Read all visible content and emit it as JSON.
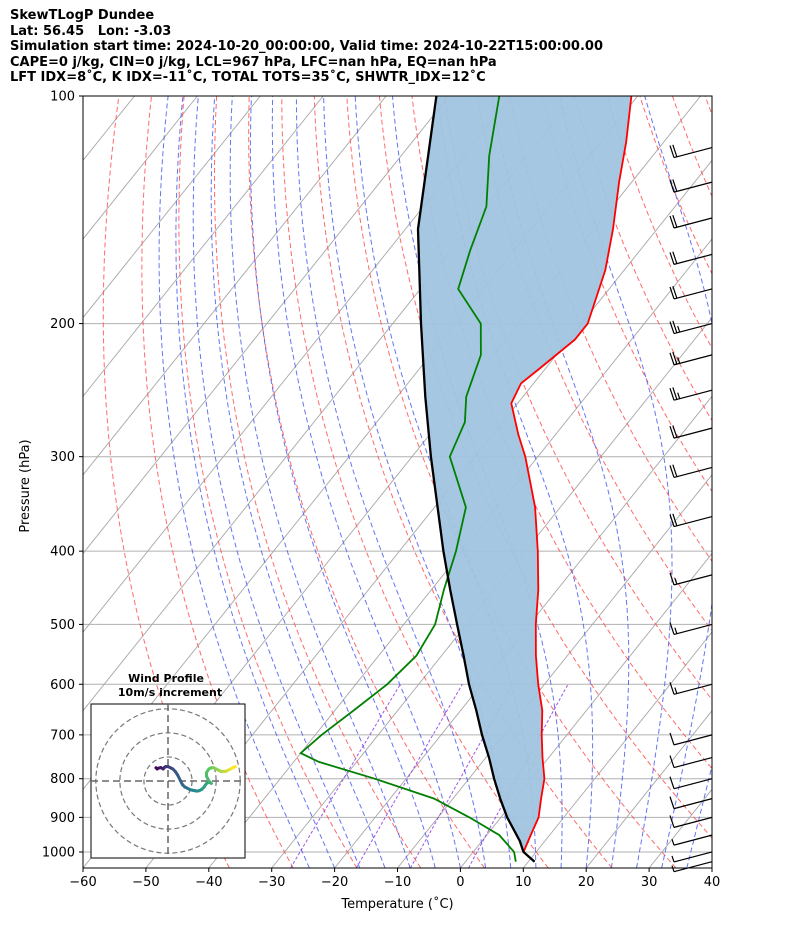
{
  "header": {
    "line1": "SkewTLogP Dundee",
    "line2": "Lat: 56.45   Lon: -3.03",
    "line3": "Simulation start time: 2024-10-20_00:00:00, Valid time: 2024-10-22T15:00:00.00",
    "line4": "CAPE=0 j/kg, CIN=0 j/kg, LCL=967 hPa, LFC=nan hPa, EQ=nan hPa",
    "line5": "LFT IDX=8˚C, K IDX=-11˚C, TOTAL TOTS=35˚C, SHWTR_IDX=12˚C"
  },
  "chart_data": {
    "type": "line",
    "subtype": "skew-t log-p",
    "xlabel": "Temperature (˚C)",
    "ylabel": "Pressure (hPa)",
    "xlim": [
      -60,
      40
    ],
    "ylim": [
      1050,
      100
    ],
    "x_ticks": [
      -60,
      -50,
      -40,
      -30,
      -20,
      -10,
      0,
      10,
      20,
      30,
      40
    ],
    "x_tick_labels": [
      "−60",
      "−50",
      "−40",
      "−30",
      "−20",
      "−10",
      "0",
      "10",
      "20",
      "30",
      "40"
    ],
    "y_ticks": [
      1000,
      900,
      800,
      700,
      600,
      500,
      400,
      300,
      200,
      100
    ],
    "y_tick_labels": [
      "1000",
      "900",
      "800",
      "700",
      "600",
      "500",
      "400",
      "300",
      "200",
      "100"
    ],
    "series": [
      {
        "name": "Temperature",
        "color": "#ff0000",
        "points": [
          [
            1030,
            11
          ],
          [
            1000,
            8
          ],
          [
            950,
            7
          ],
          [
            900,
            6
          ],
          [
            850,
            4
          ],
          [
            800,
            2
          ],
          [
            750,
            -1
          ],
          [
            700,
            -4
          ],
          [
            650,
            -7
          ],
          [
            600,
            -11
          ],
          [
            550,
            -15
          ],
          [
            500,
            -19
          ],
          [
            450,
            -23
          ],
          [
            400,
            -28
          ],
          [
            350,
            -34
          ],
          [
            300,
            -42
          ],
          [
            280,
            -46
          ],
          [
            255,
            -51
          ],
          [
            240,
            -52
          ],
          [
            230,
            -51
          ],
          [
            210,
            -49
          ],
          [
            200,
            -49
          ],
          [
            170,
            -53
          ],
          [
            150,
            -57
          ],
          [
            130,
            -62
          ],
          [
            115,
            -66
          ],
          [
            100,
            -71
          ]
        ]
      },
      {
        "name": "Dewpoint",
        "color": "#008000",
        "points": [
          [
            1030,
            8
          ],
          [
            1000,
            6.5
          ],
          [
            950,
            2
          ],
          [
            900,
            -5
          ],
          [
            850,
            -13
          ],
          [
            800,
            -25
          ],
          [
            760,
            -36
          ],
          [
            740,
            -40
          ],
          [
            700,
            -39
          ],
          [
            650,
            -37
          ],
          [
            600,
            -35
          ],
          [
            550,
            -34
          ],
          [
            500,
            -35
          ],
          [
            450,
            -38
          ],
          [
            400,
            -41
          ],
          [
            350,
            -45
          ],
          [
            300,
            -54
          ],
          [
            270,
            -56
          ],
          [
            250,
            -59
          ],
          [
            220,
            -62
          ],
          [
            200,
            -66
          ],
          [
            180,
            -74
          ],
          [
            160,
            -77
          ],
          [
            140,
            -80
          ],
          [
            120,
            -86
          ],
          [
            100,
            -92
          ]
        ]
      },
      {
        "name": "Parcel",
        "color": "#000000",
        "points": [
          [
            1030,
            11
          ],
          [
            1000,
            8
          ],
          [
            967,
            6
          ],
          [
            900,
            1
          ],
          [
            850,
            -2.5
          ],
          [
            800,
            -6
          ],
          [
            750,
            -9.5
          ],
          [
            700,
            -13.5
          ],
          [
            650,
            -17.5
          ],
          [
            600,
            -22
          ],
          [
            550,
            -26.5
          ],
          [
            500,
            -31.5
          ],
          [
            450,
            -37
          ],
          [
            400,
            -43
          ],
          [
            350,
            -49.5
          ],
          [
            300,
            -57
          ],
          [
            250,
            -65.5
          ],
          [
            200,
            -75.5
          ],
          [
            150,
            -88
          ],
          [
            100,
            -102
          ]
        ]
      }
    ],
    "fill": {
      "name": "CIN area",
      "color": "#a0c4df"
    },
    "background_lines": {
      "isotherms": "grey solid",
      "dry_adiabats": "red dashed",
      "moist_adiabats": "blue dashed",
      "mixing_ratio": "purple dashed"
    },
    "wind_barbs": [
      {
        "pressure": 1030,
        "u": -2,
        "v": 0
      },
      {
        "pressure": 1000,
        "u": -4,
        "v": 0
      },
      {
        "pressure": 950,
        "u": -6,
        "v": 0
      },
      {
        "pressure": 900,
        "u": -8,
        "v": 0
      },
      {
        "pressure": 850,
        "u": -9,
        "v": 0
      },
      {
        "pressure": 800,
        "u": -10,
        "v": 0
      },
      {
        "pressure": 750,
        "u": -11,
        "v": 0
      },
      {
        "pressure": 700,
        "u": -12,
        "v": 0
      },
      {
        "pressure": 600,
        "u": -14,
        "v": 0
      },
      {
        "pressure": 500,
        "u": -16,
        "v": 0
      },
      {
        "pressure": 430,
        "u": -17,
        "v": 0
      },
      {
        "pressure": 360,
        "u": -19,
        "v": 0
      },
      {
        "pressure": 310,
        "u": -21,
        "v": 0
      },
      {
        "pressure": 275,
        "u": -22,
        "v": 0
      },
      {
        "pressure": 245,
        "u": -24,
        "v": 0
      },
      {
        "pressure": 220,
        "u": -26,
        "v": 0
      },
      {
        "pressure": 200,
        "u": -23,
        "v": 0
      },
      {
        "pressure": 180,
        "u": -22,
        "v": 0
      },
      {
        "pressure": 162,
        "u": -22,
        "v": 0
      },
      {
        "pressure": 145,
        "u": -21,
        "v": 0
      },
      {
        "pressure": 130,
        "u": -21,
        "v": 0
      },
      {
        "pressure": 117,
        "u": -21,
        "v": 0
      }
    ],
    "inset": {
      "title_line1": "Wind Profile",
      "title_line2": "10m/s increment",
      "type": "hodograph",
      "rings": [
        10,
        20,
        30
      ],
      "range": 32,
      "hodograph_points": [
        [
          -5,
          5.5
        ],
        [
          -4.5,
          5
        ],
        [
          -4,
          5.3
        ],
        [
          -3,
          5.6
        ],
        [
          -2,
          5
        ],
        [
          -1.5,
          5.6
        ],
        [
          -1,
          6
        ],
        [
          0,
          6
        ],
        [
          1,
          5.5
        ],
        [
          2,
          5
        ],
        [
          3,
          4
        ],
        [
          4,
          2.5
        ],
        [
          5,
          0.5
        ],
        [
          6,
          -1.5
        ],
        [
          7,
          -2.5
        ],
        [
          8,
          -3
        ],
        [
          9,
          -3.5
        ],
        [
          10,
          -3.8
        ],
        [
          11,
          -4
        ],
        [
          12,
          -4.2
        ],
        [
          13,
          -4
        ],
        [
          14,
          -3.5
        ],
        [
          15,
          -2.5
        ],
        [
          16,
          -1
        ],
        [
          17,
          -0.5
        ],
        [
          18,
          -1
        ],
        [
          17,
          0
        ],
        [
          16,
          2
        ],
        [
          16,
          3.5
        ],
        [
          17,
          5
        ],
        [
          18,
          5.5
        ],
        [
          19,
          5.5
        ],
        [
          20,
          5
        ],
        [
          21,
          4.5
        ],
        [
          22,
          4
        ],
        [
          23,
          4
        ],
        [
          24,
          4
        ],
        [
          25,
          4.5
        ],
        [
          26,
          5
        ],
        [
          27,
          5.5
        ],
        [
          28,
          6
        ]
      ]
    }
  }
}
